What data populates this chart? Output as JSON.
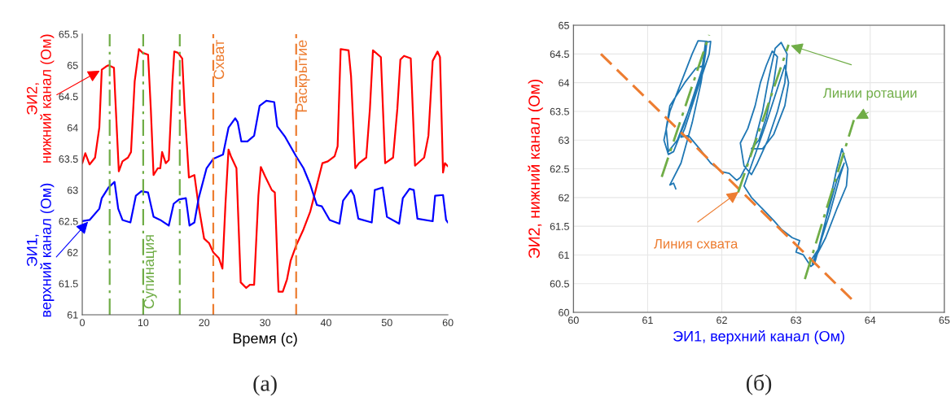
{
  "chart_data": [
    {
      "type": "line",
      "xlabel": "Время (с)",
      "annotations": [
        "(а)"
      ],
      "xlim": [
        0,
        60
      ],
      "xticks": [
        0,
        10,
        20,
        30,
        40,
        50,
        60
      ],
      "ylim": [
        61,
        65.5
      ],
      "yticks": [
        61,
        61.5,
        62,
        62.5,
        63,
        63.5,
        64,
        64.5,
        65,
        65.5
      ],
      "grid": false,
      "ref_lines": [
        {
          "axis": "x",
          "value": 4.5,
          "label": null,
          "color": "#70ad47",
          "line_style": "dashdot"
        },
        {
          "axis": "x",
          "value": 10,
          "label": "Супинация",
          "color": "#70ad47",
          "line_style": "dashdot"
        },
        {
          "axis": "x",
          "value": 16,
          "label": null,
          "color": "#70ad47",
          "line_style": "dashdot"
        },
        {
          "axis": "x",
          "value": 21.5,
          "label": "Схват",
          "color": "#ed7d31",
          "line_style": "dashed"
        },
        {
          "axis": "x",
          "value": 35.1,
          "label": "Раскрытие",
          "color": "#ed7d31",
          "line_style": "dashed"
        }
      ],
      "series": [
        {
          "name": "ЭИ2, нижний канал (Ом)",
          "color": "#ff0000",
          "x": [
            0,
            0.5,
            1.2,
            2.1,
            2.8,
            3.2,
            3.9,
            4.3,
            5.2,
            5.4,
            6.0,
            6.6,
            7.5,
            8.0,
            8.6,
            9.3,
            9.9,
            10.8,
            11.25,
            11.7,
            12.4,
            12.8,
            13.1,
            13.7,
            14.2,
            14.8,
            15.1,
            15.7,
            16.4,
            16.8,
            17.5,
            18.4,
            19.1,
            20.0,
            20.8,
            21.5,
            22.4,
            23.0,
            23.5,
            24.0,
            24.4,
            25.3,
            26.0,
            26.9,
            27.5,
            28.2,
            28.9,
            29.3,
            30.0,
            31.1,
            31.6,
            32.2,
            32.9,
            33.6,
            34.2,
            35.1,
            36.3,
            37.4,
            38.3,
            39.4,
            40.3,
            41.4,
            41.9,
            42.4,
            43.7,
            44.1,
            44.8,
            45.4,
            46.6,
            47.2,
            47.7,
            49.0,
            49.7,
            51.0,
            51.7,
            52.2,
            52.8,
            53.9,
            54.6,
            56.1,
            56.8,
            57.5,
            58.3,
            58.7,
            59.2,
            59.5,
            60.0
          ],
          "values": [
            63.43,
            63.59,
            63.41,
            63.52,
            64.0,
            64.93,
            64.98,
            65.0,
            64.96,
            64.52,
            63.3,
            63.46,
            63.52,
            63.61,
            64.74,
            65.26,
            65.2,
            65.17,
            64.3,
            63.24,
            63.35,
            63.35,
            63.61,
            63.43,
            63.48,
            64.74,
            65.22,
            65.2,
            65.11,
            64.3,
            63.2,
            63.24,
            62.74,
            62.22,
            62.15,
            62.0,
            61.91,
            61.74,
            62.78,
            63.65,
            63.54,
            63.35,
            61.52,
            61.43,
            61.48,
            61.48,
            62.91,
            63.37,
            63.22,
            63.0,
            62.96,
            61.37,
            61.37,
            61.57,
            61.87,
            62.11,
            62.37,
            62.65,
            63.0,
            63.43,
            63.46,
            63.54,
            63.7,
            65.26,
            65.24,
            64.83,
            63.35,
            63.43,
            63.52,
            64.3,
            65.24,
            65.13,
            63.43,
            63.52,
            64.3,
            65.09,
            65.15,
            65.11,
            63.39,
            63.52,
            63.87,
            65.07,
            65.22,
            65.13,
            63.28,
            63.43,
            63.38
          ]
        },
        {
          "name": "ЭИ1, верхний канал (Ом)",
          "color": "#0000ff",
          "x": [
            0,
            1.2,
            2.8,
            3.2,
            4.3,
            5.3,
            5.9,
            6.6,
            7.9,
            8.8,
            9.7,
            10.8,
            11.7,
            12.8,
            14.2,
            15.0,
            15.9,
            17.0,
            17.6,
            18.4,
            19.1,
            20.4,
            21.5,
            23.1,
            24.0,
            25.1,
            25.5,
            26.1,
            27.1,
            28.2,
            29.1,
            30.2,
            31.5,
            32.0,
            33.3,
            35.1,
            36.3,
            37.4,
            38.5,
            39.3,
            40.6,
            42.2,
            42.8,
            44.1,
            44.6,
            45.3,
            47.5,
            48.0,
            49.3,
            50.0,
            52.0,
            52.6,
            53.7,
            54.4,
            55.0,
            57.5,
            57.9,
            59.2,
            59.7,
            60.0
          ],
          "values": [
            62.5,
            62.52,
            62.7,
            62.87,
            63.04,
            63.13,
            62.7,
            62.52,
            62.48,
            62.91,
            62.98,
            62.96,
            62.57,
            62.52,
            62.43,
            62.78,
            62.85,
            62.87,
            62.43,
            62.48,
            62.87,
            63.35,
            63.5,
            63.57,
            64.0,
            64.15,
            64.09,
            63.78,
            63.78,
            63.87,
            64.35,
            64.43,
            64.41,
            64.02,
            63.85,
            63.54,
            63.35,
            63.09,
            62.76,
            62.74,
            62.52,
            62.46,
            62.83,
            63.0,
            62.91,
            62.54,
            62.48,
            63.0,
            63.04,
            62.57,
            62.46,
            62.87,
            63.02,
            63.0,
            62.54,
            62.5,
            62.91,
            62.92,
            62.52,
            62.48
          ]
        }
      ]
    },
    {
      "type": "line",
      "xlabel": "ЭИ1, верхний канал (Ом)",
      "ylabel": "ЭИ2, нижний канал (Ом)",
      "annotations": [
        "(б)"
      ],
      "xlim": [
        60,
        65
      ],
      "xticks": [
        60,
        61,
        62,
        63,
        64,
        65
      ],
      "ylim": [
        60,
        65
      ],
      "yticks": [
        60,
        60.5,
        61,
        61.5,
        62,
        62.5,
        63,
        63.5,
        64,
        64.5,
        65
      ],
      "grid": true,
      "series": [
        {
          "color": "#1f77b4",
          "x": [
            61.38,
            61.35,
            61.3,
            61.45,
            61.6,
            61.72,
            61.78,
            61.8,
            61.68,
            61.6,
            61.45,
            61.3,
            61.22,
            61.28,
            61.35,
            61.5,
            61.65,
            61.75,
            61.65,
            61.5,
            61.3,
            61.25,
            61.28,
            61.4,
            61.55,
            61.72,
            61.78,
            61.85,
            61.83,
            61.7,
            61.6,
            61.5,
            61.45,
            61.55,
            61.7,
            61.85,
            62.0,
            62.1,
            62.2,
            62.25,
            62.35,
            62.45,
            62.55,
            62.62,
            62.72,
            62.8,
            62.88,
            62.85,
            62.75,
            62.62,
            62.48,
            62.4,
            62.3,
            62.25,
            62.35,
            62.45,
            62.52,
            62.6,
            62.68,
            62.75,
            62.7,
            62.6,
            62.5,
            62.4,
            62.55,
            62.7,
            62.85,
            62.9,
            62.85,
            62.6,
            62.3,
            62.4,
            62.55,
            62.7,
            62.8,
            62.95,
            63.05,
            63.0,
            63.1,
            63.2,
            63.25,
            63.35,
            63.45,
            63.55,
            63.62,
            63.7,
            63.68,
            63.55,
            63.4,
            63.22,
            63.3,
            63.45,
            63.6,
            63.65,
            63.55,
            63.4,
            63.3,
            63.2
          ],
          "values": [
            62.15,
            62.25,
            62.22,
            62.6,
            63.3,
            64.0,
            64.5,
            64.72,
            64.73,
            64.5,
            64.0,
            63.5,
            63.0,
            62.75,
            62.8,
            63.3,
            63.9,
            64.3,
            64.25,
            64.0,
            63.6,
            63.2,
            62.8,
            63.0,
            63.5,
            64.1,
            64.7,
            64.72,
            64.5,
            64.0,
            63.6,
            63.2,
            63.05,
            63.08,
            62.85,
            62.6,
            62.45,
            62.42,
            62.3,
            62.35,
            62.6,
            63.0,
            63.5,
            64.0,
            64.6,
            64.7,
            64.5,
            64.0,
            63.5,
            63.0,
            62.6,
            62.4,
            62.55,
            62.95,
            63.2,
            63.6,
            64.0,
            64.3,
            64.55,
            64.45,
            64.0,
            63.4,
            63.0,
            62.85,
            62.85,
            63.1,
            63.6,
            64.0,
            64.3,
            63.3,
            62.2,
            62.0,
            61.8,
            61.6,
            61.45,
            61.3,
            61.25,
            61.05,
            61.0,
            60.8,
            60.85,
            61.3,
            61.9,
            62.5,
            62.85,
            62.5,
            62.2,
            61.8,
            61.3,
            60.85,
            61.1,
            61.7,
            62.4,
            62.6,
            62.3,
            61.6,
            61.1,
            60.9
          ]
        },
        {
          "name": "Линия схвата",
          "color": "#ed7d31",
          "line_style": "dashed",
          "x": [
            60.37,
            63.79
          ],
          "values": [
            64.5,
            60.18
          ]
        },
        {
          "name": "Линии ротации",
          "color": "#70ad47",
          "line_style": "dashdot",
          "x": [
            61.19,
            61.83,
            null,
            62.22,
            62.9,
            null,
            63.12,
            63.78
          ],
          "values": [
            62.36,
            64.83,
            null,
            62.09,
            64.66,
            null,
            60.58,
            63.35
          ]
        }
      ]
    }
  ]
}
